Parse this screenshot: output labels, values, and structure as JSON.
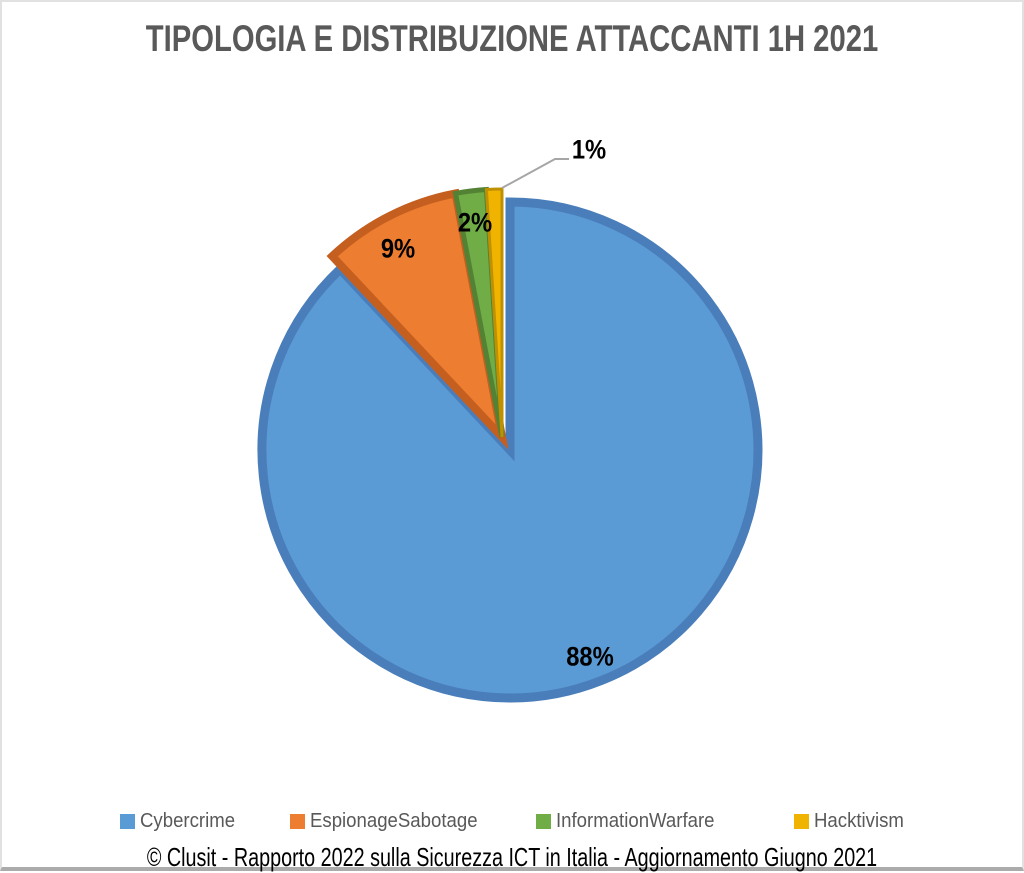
{
  "title": "TIPOLOGIA E DISTRIBUZIONE ATTACCANTI 1H 2021",
  "footer": "© Clusit - Rapporto 2022 sulla Sicurezza ICT in Italia - Aggiornamento Giugno 2021",
  "chart_data": {
    "type": "pie",
    "title": "TIPOLOGIA E DISTRIBUZIONE ATTACCANTI 1H 2021",
    "categories": [
      "Cybercrime",
      "EspionageSabotage",
      "InformationWarfare",
      "Hacktivism"
    ],
    "values": [
      88,
      9,
      2,
      1
    ],
    "unit": "%",
    "data_labels": [
      "88%",
      "9%",
      "2%",
      "1%"
    ],
    "colors": [
      "#5B9BD5",
      "#ED7D31",
      "#70AD47",
      "#F0B400"
    ],
    "border_colors": [
      "#4A7EBB",
      "#C55F1F",
      "#548235",
      "#BF9000"
    ],
    "start_angle_deg": 0,
    "direction": "clockwise",
    "legend_position": "bottom",
    "leader_line_color": "#a6a6a6",
    "exploded_slice": "Cybercrime"
  },
  "legend": {
    "items": [
      {
        "label": "Cybercrime",
        "color": "#5B9BD5"
      },
      {
        "label": "EspionageSabotage",
        "color": "#ED7D31"
      },
      {
        "label": "InformationWarfare",
        "color": "#70AD47"
      },
      {
        "label": "Hacktivism",
        "color": "#F0B400"
      }
    ]
  }
}
